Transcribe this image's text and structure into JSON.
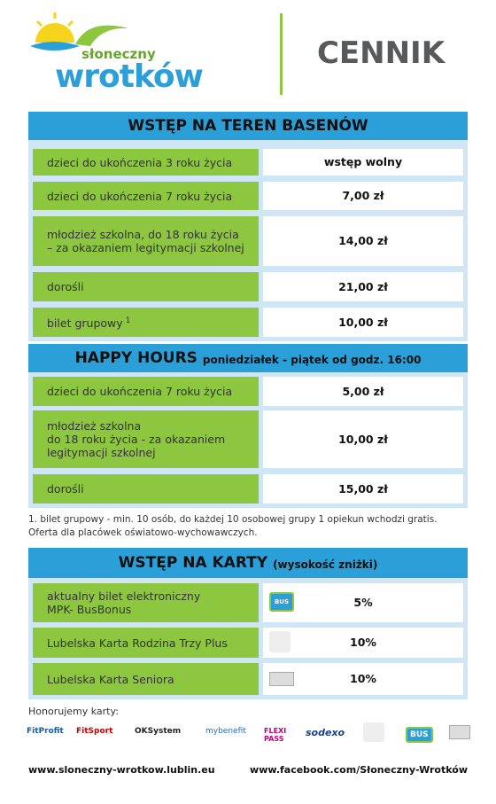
{
  "logo": {
    "line1": "słoneczny",
    "line2": "wrotków"
  },
  "header": {
    "title": "CENNIK"
  },
  "sections": [
    {
      "title": "WSTĘP NA TEREN BASENÓW",
      "rows": [
        {
          "label": [
            "dzieci do ukończenia 3 roku życia"
          ],
          "price": "wstęp wolny"
        },
        {
          "label": [
            "dzieci do ukończenia 7 roku życia"
          ],
          "price": "7,00 zł"
        },
        {
          "label": [
            "młodzież szkolna, do 18 roku życia",
            "– za okazaniem legitymacji szkolnej"
          ],
          "price": "14,00 zł"
        },
        {
          "label": [
            "dorośli"
          ],
          "price": "21,00 zł"
        },
        {
          "label": [
            "bilet grupowy"
          ],
          "note": "1",
          "price": "10,00 zł"
        }
      ]
    },
    {
      "title": "HAPPY HOURS",
      "subtitle": "poniedziałek - piątek od godz. 16:00",
      "rows": [
        {
          "label": [
            "dzieci do ukończenia 7 roku życia"
          ],
          "price": "5,00 zł"
        },
        {
          "label": [
            "młodzież szkolna",
            "do 18 roku życia - za okazaniem",
            "legitymacji szkolnej"
          ],
          "price": "10,00 zł"
        },
        {
          "label": [
            "dorośli"
          ],
          "price": "15,00 zł"
        }
      ]
    }
  ],
  "footnote": [
    "1. bilet grupowy - min. 10 osób, do każdej 10 osobowej grupy 1 opiekun wchodzi gratis.",
    "Oferta dla placówek oświatowo-wychowawczych."
  ],
  "cards": {
    "title": "WSTĘP NA KARTY",
    "subtitle": "(wysokość zniżki)",
    "rows": [
      {
        "label": [
          "aktualny bilet elektroniczny",
          "MPK- BusBonus"
        ],
        "icon": "BUS",
        "discount": "5%"
      },
      {
        "label": [
          "Lubelska Karta Rodzina Trzy Plus"
        ],
        "discount": "10%"
      },
      {
        "label": [
          "Lubelska Karta Seniora"
        ],
        "discount": "10%"
      }
    ]
  },
  "honored": {
    "title": "Honorujemy karty:",
    "logos": [
      "FitProfit",
      "FitSport",
      "OKSystem",
      "mybenefit",
      "FLEXI PASS",
      "sodexo",
      "BUS"
    ]
  },
  "footer": {
    "left": "www.sloneczny-wrotkow.lublin.eu",
    "right": "www.facebook.com/Słoneczny-Wrotków"
  }
}
